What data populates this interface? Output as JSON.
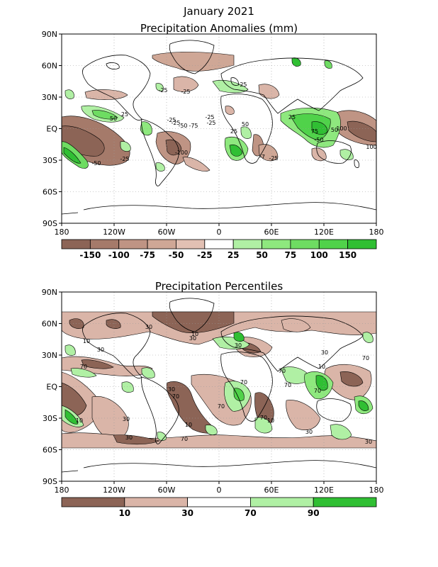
{
  "page": {
    "title": "January 2021"
  },
  "maps": [
    {
      "id": "anomaly",
      "title": "Precipitation Anomalies (mm)",
      "lat_ticks": [
        "90N",
        "60N",
        "30N",
        "EQ",
        "30S",
        "60S",
        "90S"
      ],
      "lon_ticks": [
        "180",
        "120W",
        "60W",
        "0",
        "60E",
        "120E",
        "180"
      ],
      "legend": {
        "labels": [
          "-150",
          "-100",
          "-75",
          "-50",
          "-25",
          "25",
          "50",
          "75",
          "100",
          "150"
        ],
        "colors": [
          "#8c6456",
          "#a57a6a",
          "#bf9484",
          "#cfa796",
          "#e2c0b3",
          "#ffffff",
          "#b0f0a4",
          "#8ee87e",
          "#6edc62",
          "#50d24a",
          "#30bf33"
        ]
      },
      "contour_labels": [
        "-25",
        "-25",
        "-25",
        "-25",
        "50",
        "25",
        "-25",
        "-50",
        "-75",
        "-100",
        "-25",
        "-50",
        "-25",
        "25",
        "50",
        "-7",
        "-25",
        "25",
        "75",
        "-50",
        "50",
        "100",
        "100",
        "-25"
      ]
    },
    {
      "id": "percentile",
      "title": "Precipitation Percentiles",
      "lat_ticks": [
        "90N",
        "60N",
        "30N",
        "EQ",
        "30S",
        "60S",
        "90S"
      ],
      "lon_ticks": [
        "180",
        "120W",
        "60W",
        "0",
        "60E",
        "120E",
        "180"
      ],
      "legend": {
        "labels": [
          "10",
          "30",
          "70",
          "90"
        ],
        "colors": [
          "#8c6456",
          "#dab5a8",
          "#ffffff",
          "#b0f0a4",
          "#30bf33"
        ]
      },
      "contour_labels": [
        "30",
        "10",
        "30",
        "10",
        "30",
        "70",
        "30",
        "70",
        "70",
        "10",
        "30",
        "10",
        "70",
        "30",
        "70",
        "70",
        "10",
        "70",
        "30",
        "70",
        "10",
        "30",
        "70",
        "30",
        "70",
        "30"
      ]
    }
  ],
  "colors": {
    "dry_dark": "#8c6456",
    "dry_mid": "#bf9484",
    "dry_light": "#dcb8aa",
    "wet_light": "#b0f0a4",
    "wet_mid": "#6edc62",
    "wet_dark": "#30bf33",
    "grid": "#9a9a9a",
    "coast": "#000000"
  }
}
